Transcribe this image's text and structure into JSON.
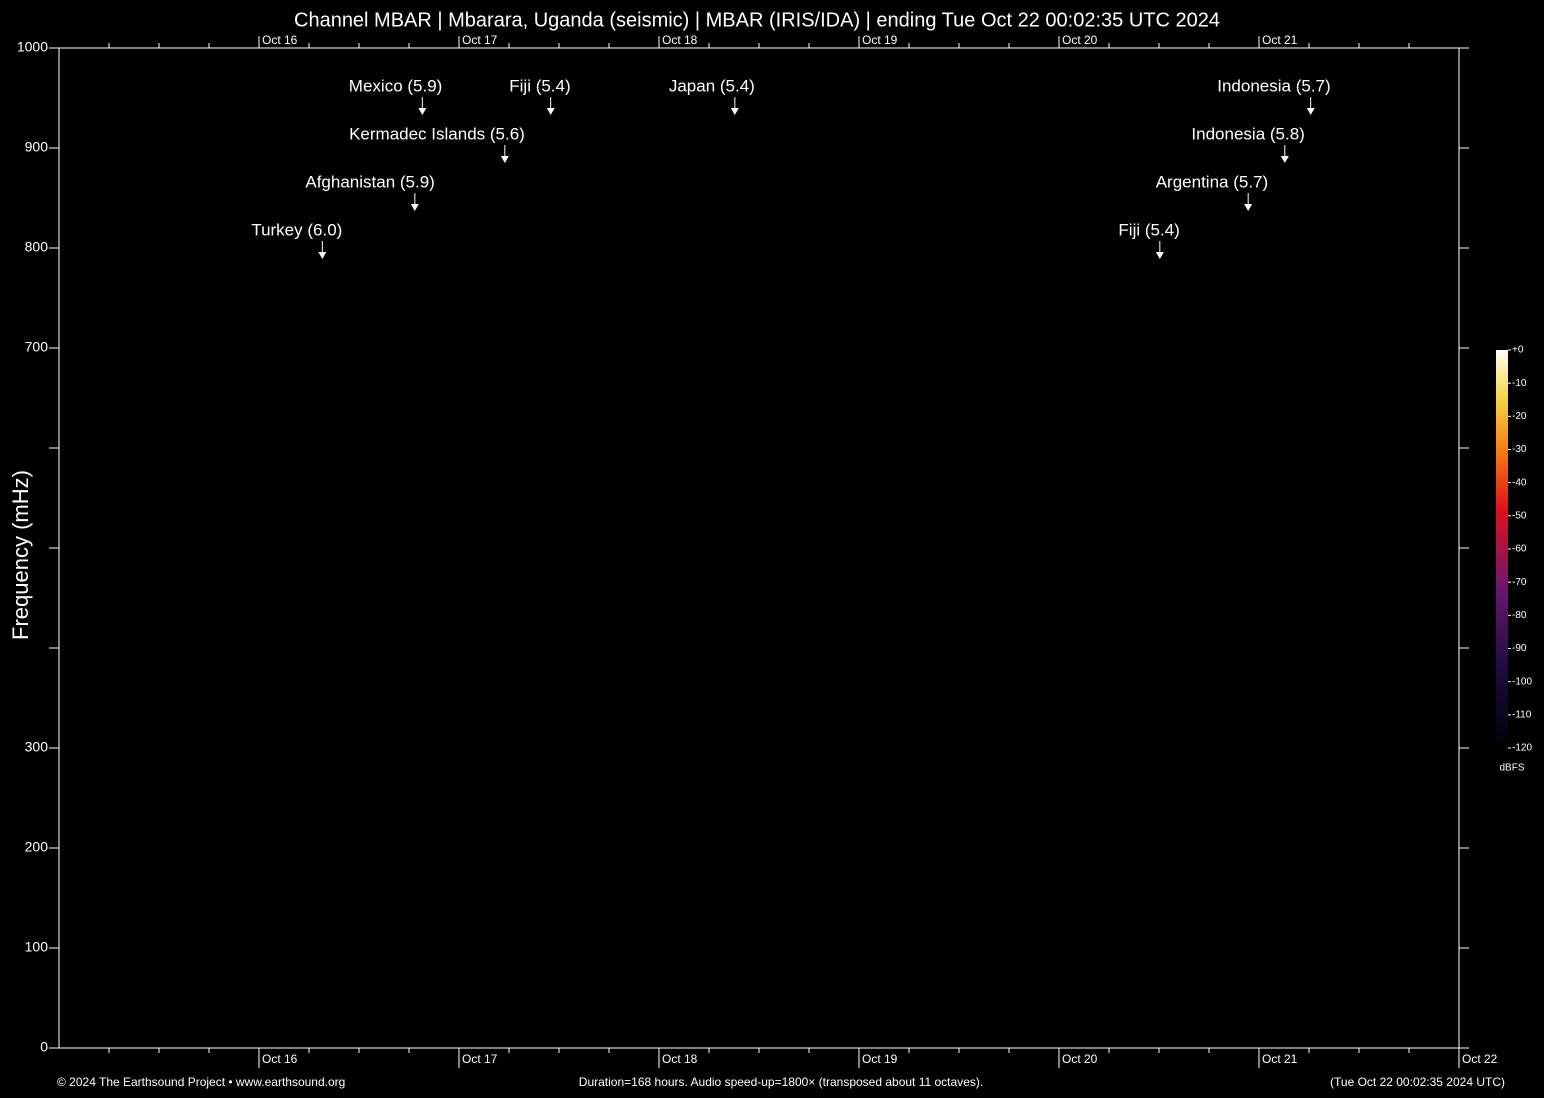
{
  "chart_data": {
    "type": "spectrogram",
    "title": "Channel MBAR | Mbarara, Uganda (seismic) | MBAR (IRIS/IDA) | ending Tue Oct 22 00:02:35 UTC 2024",
    "ylabel": "Frequency (mHz)",
    "xlim": [
      0,
      168
    ],
    "xticks": [
      {
        "value": 24,
        "label": "Oct 16"
      },
      {
        "value": 48,
        "label": "Oct 17"
      },
      {
        "value": 72,
        "label": "Oct 18"
      },
      {
        "value": 96,
        "label": "Oct 19"
      },
      {
        "value": 120,
        "label": "Oct 20"
      },
      {
        "value": 144,
        "label": "Oct 21"
      },
      {
        "value": 168,
        "label": "Oct 22"
      }
    ],
    "xminorticks": [
      6,
      12,
      18,
      30,
      36,
      42,
      54,
      60,
      66,
      78,
      84,
      90,
      102,
      108,
      114,
      126,
      132,
      138,
      150,
      156,
      162
    ],
    "ylim": [
      0,
      1000
    ],
    "yticks": [
      0,
      100,
      200,
      300,
      700,
      800,
      900,
      1000
    ],
    "yminorticks": [
      400,
      500,
      600
    ],
    "events": [
      {
        "label": "Turkey (6.0)",
        "x": 31.6
      },
      {
        "label": "Afghanistan (5.9)",
        "x": 42.7
      },
      {
        "label": "Mexico (5.9)",
        "x": 43.6
      },
      {
        "label": "Kermadec Islands (5.6)",
        "x": 53.5
      },
      {
        "label": "Fiji (5.4)",
        "x": 59.0
      },
      {
        "label": "Japan (5.4)",
        "x": 81.1
      },
      {
        "label": "Fiji (5.4)",
        "x": 132.1
      },
      {
        "label": "Argentina (5.7)",
        "x": 142.7
      },
      {
        "label": "Indonesia (5.8)",
        "x": 147.1
      },
      {
        "label": "Indonesia (5.7)",
        "x": 150.2
      }
    ],
    "colorbar": {
      "lim": [
        -120,
        0
      ],
      "label": "dBFS",
      "ticks": [
        {
          "value": 0,
          "label": "+0"
        },
        -10,
        -20,
        -30,
        -40,
        -50,
        -60,
        -70,
        -80,
        -90,
        -100,
        -110,
        -120
      ]
    },
    "footer": {
      "left": "© 2024 The Earthsound Project • www.earthsound.org",
      "center": "Duration=168 hours. Audio speed-up=1800× (transposed about 11 octaves).",
      "right": "(Tue Oct 22 00:02:35 2024 UTC)"
    }
  }
}
